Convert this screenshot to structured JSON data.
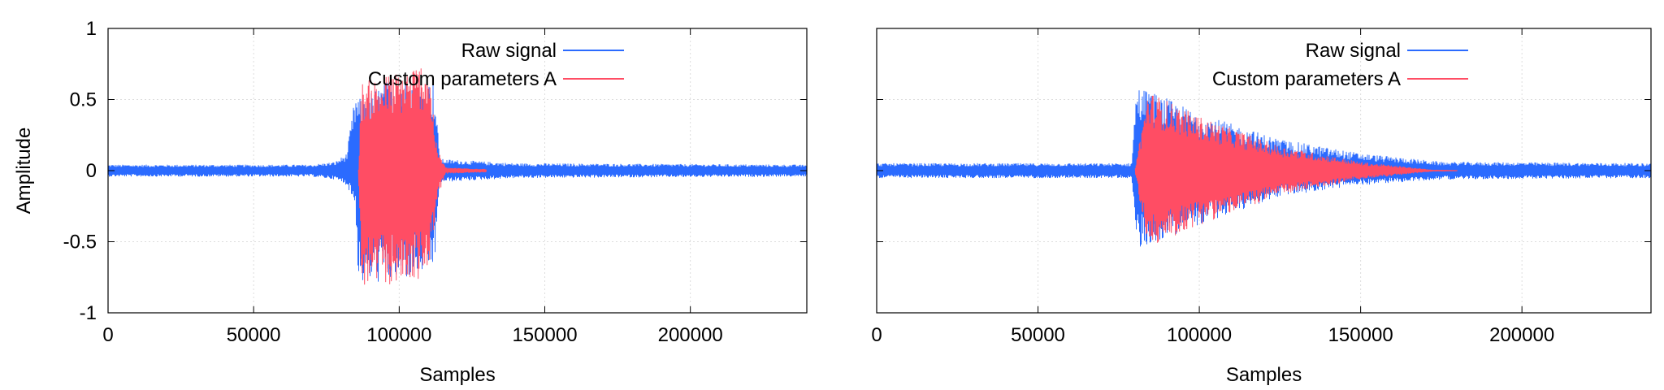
{
  "chart_data": [
    {
      "type": "line",
      "title": "",
      "xlabel": "Samples",
      "ylabel": "Amplitude",
      "xlim": [
        0,
        240000
      ],
      "ylim": [
        -1,
        1
      ],
      "xticks": [
        0,
        50000,
        100000,
        150000,
        200000
      ],
      "xtick_labels": [
        "0",
        "50000",
        "100000",
        "150000",
        "200000"
      ],
      "yticks": [
        1,
        0.5,
        0,
        -0.5,
        -1
      ],
      "ytick_labels": [
        "1",
        "0.5",
        "0",
        "-0.5",
        "-1"
      ],
      "grid": true,
      "legend_position": "top-right",
      "series": [
        {
          "name": "Raw signal",
          "color": "#2b6bff",
          "envelope": [
            {
              "x": 0,
              "lo": -0.04,
              "hi": 0.04
            },
            {
              "x": 70000,
              "lo": -0.04,
              "hi": 0.04
            },
            {
              "x": 78000,
              "lo": -0.06,
              "hi": 0.06
            },
            {
              "x": 82000,
              "lo": -0.1,
              "hi": 0.12
            },
            {
              "x": 85000,
              "lo": -0.25,
              "hi": 0.55
            },
            {
              "x": 86000,
              "lo": -0.8,
              "hi": 0.5
            },
            {
              "x": 100000,
              "lo": -0.78,
              "hi": 0.68
            },
            {
              "x": 112000,
              "lo": -0.7,
              "hi": 0.62
            },
            {
              "x": 114000,
              "lo": -0.08,
              "hi": 0.08
            },
            {
              "x": 140000,
              "lo": -0.05,
              "hi": 0.05
            },
            {
              "x": 240000,
              "lo": -0.04,
              "hi": 0.04
            }
          ]
        },
        {
          "name": "Custom parameters A",
          "color": "#ff4d64",
          "envelope": [
            {
              "x": 86000,
              "lo": -0.01,
              "hi": 0.01
            },
            {
              "x": 87000,
              "lo": -0.82,
              "hi": 0.62
            },
            {
              "x": 100000,
              "lo": -0.8,
              "hi": 0.7
            },
            {
              "x": 110000,
              "lo": -0.75,
              "hi": 0.78
            },
            {
              "x": 113000,
              "lo": -0.2,
              "hi": 0.15
            },
            {
              "x": 116000,
              "lo": -0.02,
              "hi": 0.02
            },
            {
              "x": 130000,
              "lo": -0.01,
              "hi": 0.01
            }
          ]
        }
      ]
    },
    {
      "type": "line",
      "title": "",
      "xlabel": "Samples",
      "ylabel": "",
      "xlim": [
        0,
        240000
      ],
      "ylim": [
        -1,
        1
      ],
      "xticks": [
        0,
        50000,
        100000,
        150000,
        200000
      ],
      "xtick_labels": [
        "0",
        "50000",
        "100000",
        "150000",
        "200000"
      ],
      "yticks": [
        1,
        0.5,
        0,
        -0.5,
        -1
      ],
      "ytick_labels": [],
      "grid": true,
      "legend_position": "top-right",
      "series": [
        {
          "name": "Raw signal",
          "color": "#2b6bff",
          "envelope": [
            {
              "x": 0,
              "lo": -0.05,
              "hi": 0.05
            },
            {
              "x": 79000,
              "lo": -0.05,
              "hi": 0.05
            },
            {
              "x": 80500,
              "lo": -0.55,
              "hi": 0.6
            },
            {
              "x": 84000,
              "lo": -0.52,
              "hi": 0.57
            },
            {
              "x": 100000,
              "lo": -0.38,
              "hi": 0.4
            },
            {
              "x": 125000,
              "lo": -0.18,
              "hi": 0.22
            },
            {
              "x": 150000,
              "lo": -0.1,
              "hi": 0.12
            },
            {
              "x": 175000,
              "lo": -0.06,
              "hi": 0.06
            },
            {
              "x": 240000,
              "lo": -0.05,
              "hi": 0.05
            }
          ]
        },
        {
          "name": "Custom parameters A",
          "color": "#ff4d64",
          "envelope": [
            {
              "x": 80000,
              "lo": -0.01,
              "hi": 0.01
            },
            {
              "x": 84000,
              "lo": -0.55,
              "hi": 0.56
            },
            {
              "x": 100000,
              "lo": -0.38,
              "hi": 0.38
            },
            {
              "x": 125000,
              "lo": -0.17,
              "hi": 0.17
            },
            {
              "x": 150000,
              "lo": -0.06,
              "hi": 0.06
            },
            {
              "x": 172000,
              "lo": -0.005,
              "hi": 0.005
            },
            {
              "x": 180000,
              "lo": -0.002,
              "hi": 0.002
            }
          ]
        }
      ]
    }
  ]
}
